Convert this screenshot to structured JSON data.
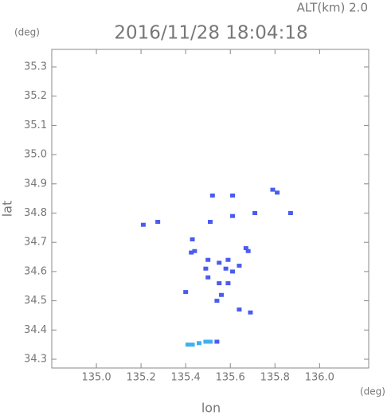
{
  "chart_data": {
    "type": "scatter",
    "title": "2016/11/28 18:04:18",
    "subtitle": "ALT(km) 2.0",
    "x_label": "lon",
    "y_label": "lat",
    "x_unit": "(deg)",
    "y_unit": "(deg)",
    "xlim": [
      134.8,
      136.22
    ],
    "ylim": [
      34.27,
      35.36
    ],
    "xticks": [
      {
        "value": 135,
        "label": "135.0"
      },
      135.2,
      135.4,
      135.6,
      135.8,
      {
        "value": 136,
        "label": "136.0"
      }
    ],
    "yticks": [
      34.3,
      34.4,
      34.5,
      34.6,
      34.7,
      34.8,
      34.9,
      {
        "value": 35,
        "label": "35.0"
      },
      35.1,
      35.2,
      35.3
    ],
    "series": [
      {
        "color": "#4a5cf0",
        "x": [
          135.21,
          135.275,
          135.79,
          135.81,
          135.61,
          135.52,
          135.61,
          135.71,
          135.87,
          135.51,
          135.43,
          135.44,
          135.425,
          135.5,
          135.49,
          135.67,
          135.68,
          135.59,
          135.64,
          135.61,
          135.58,
          135.55,
          135.59,
          135.55,
          135.56,
          135.54,
          135.4,
          135.64,
          135.69,
          135.54,
          135.5
        ],
        "values": [
          34.76,
          34.77,
          34.88,
          34.87,
          34.86,
          34.86,
          34.79,
          34.8,
          34.8,
          34.77,
          34.71,
          34.67,
          34.665,
          34.64,
          34.61,
          34.68,
          34.67,
          34.64,
          34.62,
          34.6,
          34.61,
          34.63,
          34.56,
          34.56,
          34.52,
          34.5,
          34.53,
          34.47,
          34.46,
          34.36,
          34.58
        ]
      },
      {
        "color": "#3fb0ee",
        "x": [
          135.41,
          135.43,
          135.46,
          135.49,
          135.51
        ],
        "values": [
          34.35,
          34.35,
          34.355,
          34.36,
          34.36
        ]
      }
    ]
  }
}
